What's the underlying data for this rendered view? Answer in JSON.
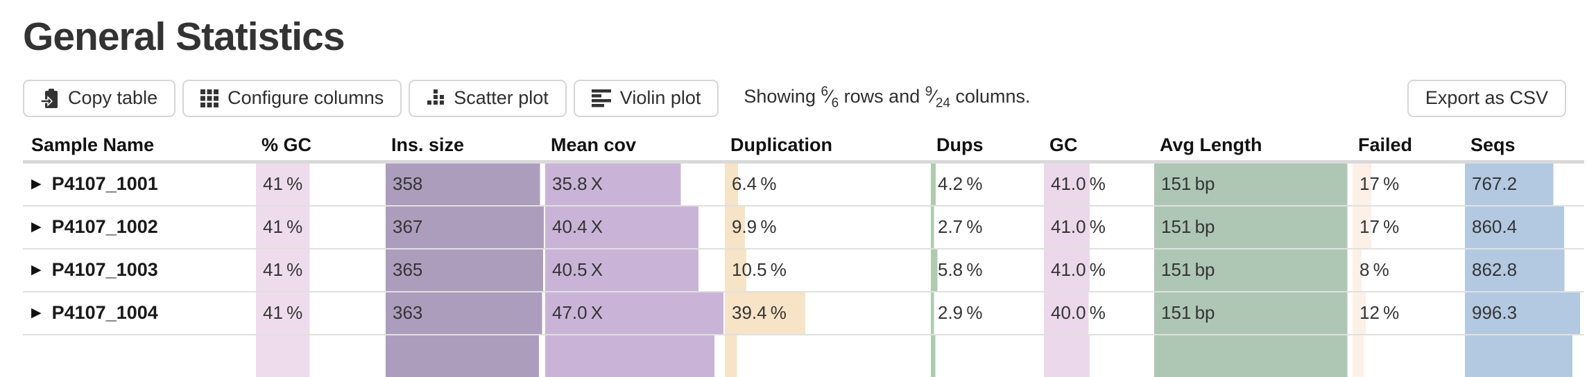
{
  "page": {
    "title": "General Statistics"
  },
  "toolbar": {
    "buttons": [
      {
        "label": "Copy table",
        "icon": "clipboard-icon"
      },
      {
        "label": "Configure columns",
        "icon": "grid-icon"
      },
      {
        "label": "Scatter plot",
        "icon": "scatter-icon"
      },
      {
        "label": "Violin plot",
        "icon": "violin-icon"
      }
    ],
    "showing": {
      "prefix": "Showing",
      "rows_shown": "6",
      "rows_total": "6",
      "slash": "⁄",
      "middle": "rows and",
      "cols_shown": "9",
      "cols_total": "24",
      "suffix": "columns."
    },
    "export_button": "Export as CSV"
  },
  "table": {
    "columns": [
      {
        "label": "Sample Name",
        "bar_color": null
      },
      {
        "label": "% GC",
        "bar_color": "#eedcec"
      },
      {
        "label": "Ins. size",
        "bar_color": "#ad9dbc"
      },
      {
        "label": "Mean cov",
        "bar_color": "#c9b4d7"
      },
      {
        "label": "Duplication",
        "bar_color": "#f7e3c6"
      },
      {
        "label": "Dups",
        "bar_color": "#afcbae"
      },
      {
        "label": "GC",
        "bar_color": "#ecd8eb"
      },
      {
        "label": "Avg Length",
        "bar_color": "#aec7b5"
      },
      {
        "label": "Failed",
        "bar_color": "#fdf0e6"
      },
      {
        "label": "Seqs",
        "bar_color": "#b3c9e1"
      }
    ],
    "rows": [
      {
        "sample": "P4107_1001",
        "partial": false,
        "cells": [
          {
            "text": "41 %",
            "frac": 0.42
          },
          {
            "text": "358",
            "frac": 0.975
          },
          {
            "text": "35.8 X",
            "frac": 0.76
          },
          {
            "text": "6.4 %",
            "frac": 0.064
          },
          {
            "text": "4.2 %",
            "frac": 0.042
          },
          {
            "text": "41.0 %",
            "frac": 0.42
          },
          {
            "text": "151 bp",
            "frac": 0.98
          },
          {
            "text": "17 %",
            "frac": 0.17
          },
          {
            "text": "767.2",
            "frac": 0.74
          }
        ]
      },
      {
        "sample": "P4107_1002",
        "partial": false,
        "cells": [
          {
            "text": "41 %",
            "frac": 0.42
          },
          {
            "text": "367",
            "frac": 1.0
          },
          {
            "text": "40.4 X",
            "frac": 0.86
          },
          {
            "text": "9.9 %",
            "frac": 0.099
          },
          {
            "text": "2.7 %",
            "frac": 0.027
          },
          {
            "text": "41.0 %",
            "frac": 0.42
          },
          {
            "text": "151 bp",
            "frac": 0.98
          },
          {
            "text": "17 %",
            "frac": 0.17
          },
          {
            "text": "860.4",
            "frac": 0.83
          }
        ]
      },
      {
        "sample": "P4107_1003",
        "partial": false,
        "cells": [
          {
            "text": "41 %",
            "frac": 0.42
          },
          {
            "text": "365",
            "frac": 0.995
          },
          {
            "text": "40.5 X",
            "frac": 0.86
          },
          {
            "text": "10.5 %",
            "frac": 0.105
          },
          {
            "text": "5.8 %",
            "frac": 0.058
          },
          {
            "text": "41.0 %",
            "frac": 0.42
          },
          {
            "text": "151 bp",
            "frac": 0.98
          },
          {
            "text": "8 %",
            "frac": 0.08
          },
          {
            "text": "862.8",
            "frac": 0.835
          }
        ]
      },
      {
        "sample": "P4107_1004",
        "partial": false,
        "cells": [
          {
            "text": "41 %",
            "frac": 0.42
          },
          {
            "text": "363",
            "frac": 0.989
          },
          {
            "text": "47.0 X",
            "frac": 1.0
          },
          {
            "text": "39.4 %",
            "frac": 0.394
          },
          {
            "text": "2.9 %",
            "frac": 0.029
          },
          {
            "text": "40.0 %",
            "frac": 0.41
          },
          {
            "text": "151 bp",
            "frac": 0.98
          },
          {
            "text": "12 %",
            "frac": 0.12
          },
          {
            "text": "996.3",
            "frac": 0.965
          }
        ]
      },
      {
        "sample": "",
        "partial": true,
        "cells": [
          {
            "text": "",
            "frac": 0.42
          },
          {
            "text": "",
            "frac": 0.97
          },
          {
            "text": "",
            "frac": 0.95
          },
          {
            "text": "",
            "frac": 0.06
          },
          {
            "text": "",
            "frac": 0.04
          },
          {
            "text": "",
            "frac": 0.42
          },
          {
            "text": "",
            "frac": 0.98
          },
          {
            "text": "",
            "frac": 0.1
          },
          {
            "text": "",
            "frac": 0.9
          }
        ]
      }
    ]
  }
}
